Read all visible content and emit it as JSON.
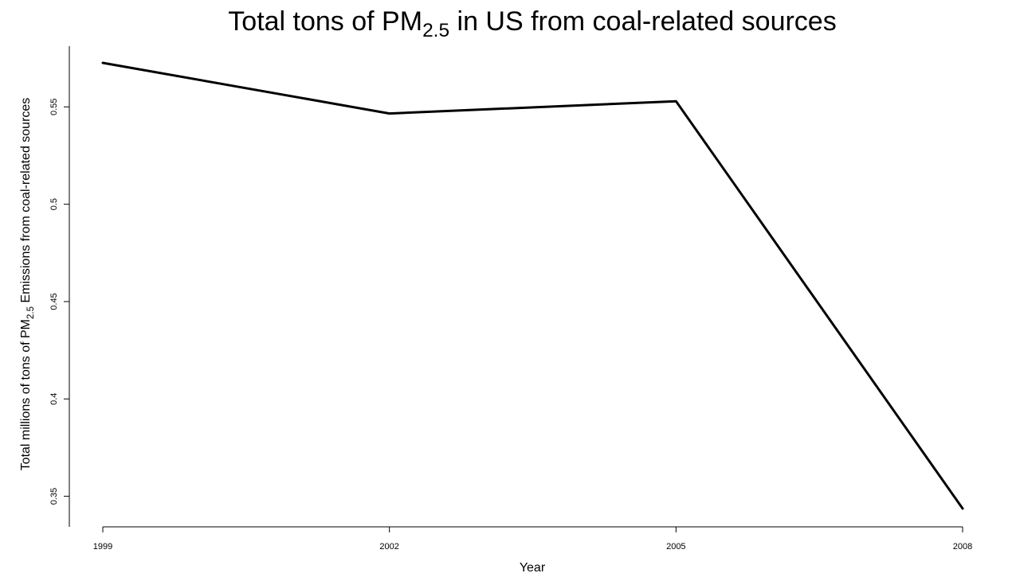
{
  "chart_data": {
    "type": "line",
    "title": {
      "before": "Total tons of PM",
      "subscript": "2.5",
      "after": " in US from coal-related sources"
    },
    "xlabel": "Year",
    "ylabel": {
      "before": "Total millions of tons of PM",
      "subscript": "2.5",
      "after": " Emissions from coal-related sources"
    },
    "x": [
      1999,
      2002,
      2005,
      2008
    ],
    "x_tick_labels": [
      "1999",
      "2002",
      "2005",
      "2008"
    ],
    "y_ticks": [
      0.35,
      0.4,
      0.45,
      0.5,
      0.55
    ],
    "y_tick_labels": [
      "0.35",
      "0.4",
      "0.45",
      "0.5",
      "0.55"
    ],
    "series": [
      {
        "values": [
          0.5726,
          0.5466,
          0.5529,
          0.3437
        ]
      }
    ],
    "xlim": [
      1999,
      2008
    ],
    "ylim": [
      0.3437,
      0.5726
    ],
    "grid": false,
    "line_color": "#000000"
  }
}
